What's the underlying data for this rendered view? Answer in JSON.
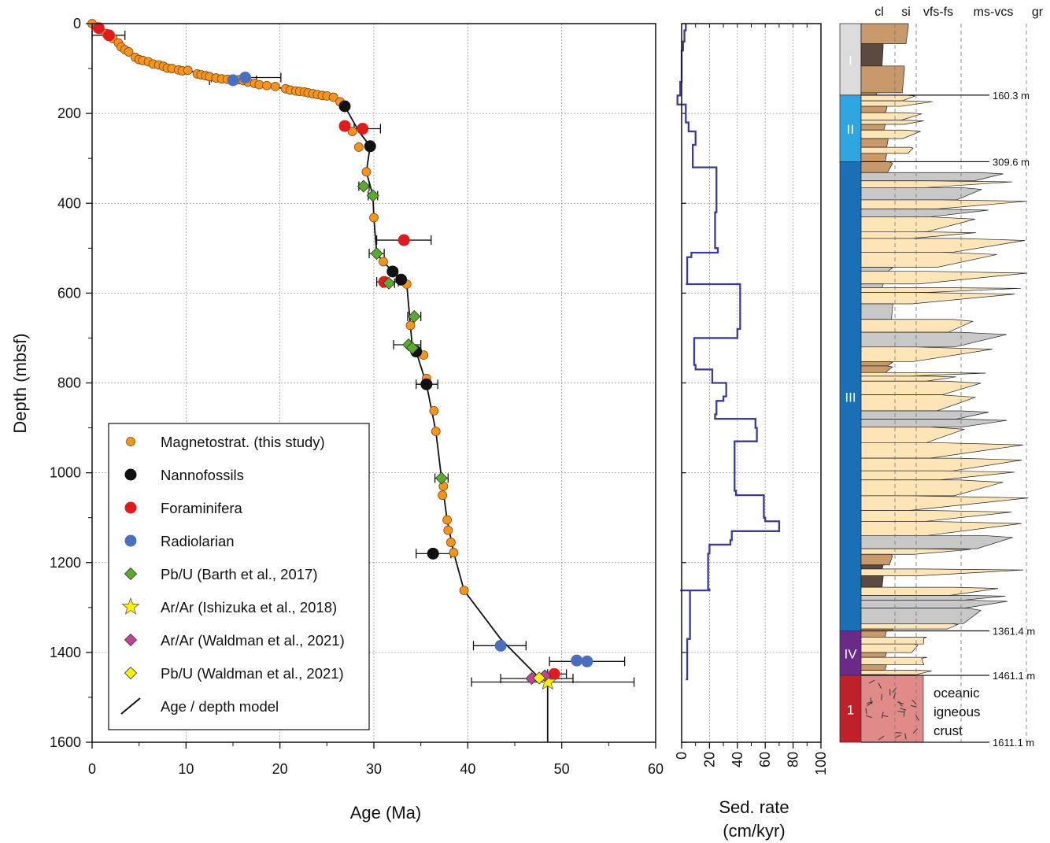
{
  "chart_data": [
    {
      "type": "scatter",
      "xlabel": "Age (Ma)",
      "ylabel": "Depth (mbsf)",
      "xlim": [
        0,
        60
      ],
      "ylim": [
        1600,
        0
      ],
      "xticks": [
        "0",
        "10",
        "20",
        "30",
        "40",
        "50",
        "60"
      ],
      "yticks": [
        "0",
        "200",
        "400",
        "600",
        "800",
        "1000",
        "1200",
        "1400",
        "1600"
      ],
      "grid": true,
      "legend_position": "bottom-left",
      "legend": [
        {
          "label": "Magnetostrat. (this study)",
          "marker": "circle-small",
          "color": "#f7941d"
        },
        {
          "label": "Nannofossils",
          "marker": "circle",
          "color": "#111111"
        },
        {
          "label": "Foraminifera",
          "marker": "circle",
          "color": "#e31a1c"
        },
        {
          "label": "Radiolarian",
          "marker": "circle",
          "color": "#4a6fbf"
        },
        {
          "label": "Pb/U (Barth et al., 2017)",
          "marker": "diamond",
          "color": "#5aab2b"
        },
        {
          "label": "Ar/Ar (Ishizuka et al., 2018)",
          "marker": "star",
          "color": "#fff200"
        },
        {
          "label": "Ar/Ar (Waldman et al., 2021)",
          "marker": "diamond",
          "color": "#c2439a"
        },
        {
          "label": "Pb/U (Waldman et al., 2021)",
          "marker": "diamond",
          "color": "#fff200"
        },
        {
          "label": "Age / depth model",
          "marker": "line",
          "color": "#111111"
        }
      ],
      "series": [
        {
          "name": "Magnetostrat. (this study)",
          "points": [
            [
              0,
              0
            ],
            [
              0.8,
              12
            ],
            [
              1.5,
              22
            ],
            [
              2.2,
              33
            ],
            [
              2.8,
              43
            ],
            [
              3.1,
              52
            ],
            [
              3.5,
              58
            ],
            [
              3.9,
              63
            ],
            [
              4.6,
              75
            ],
            [
              5.0,
              80
            ],
            [
              5.4,
              82
            ],
            [
              6.0,
              85
            ],
            [
              6.5,
              90
            ],
            [
              7.1,
              92
            ],
            [
              7.6,
              95
            ],
            [
              8.0,
              99
            ],
            [
              8.5,
              100
            ],
            [
              9.2,
              103
            ],
            [
              9.6,
              105
            ],
            [
              10.2,
              104
            ],
            [
              11.2,
              112
            ],
            [
              11.6,
              114
            ],
            [
              12.1,
              116
            ],
            [
              12.5,
              118
            ],
            [
              13.2,
              121
            ],
            [
              13.8,
              123
            ],
            [
              14.4,
              124
            ],
            [
              15.6,
              125
            ],
            [
              16.1,
              127
            ],
            [
              16.6,
              130
            ],
            [
              17.3,
              133
            ],
            [
              17.8,
              136
            ],
            [
              18.6,
              138
            ],
            [
              19.5,
              140
            ],
            [
              20.6,
              145
            ],
            [
              21.1,
              148
            ],
            [
              21.7,
              150
            ],
            [
              22.1,
              151
            ],
            [
              22.6,
              152
            ],
            [
              23.0,
              154
            ],
            [
              23.5,
              156
            ],
            [
              24.0,
              158
            ],
            [
              24.5,
              160
            ],
            [
              25.0,
              161
            ],
            [
              25.7,
              164
            ],
            [
              26.4,
              174
            ],
            [
              27.7,
              240
            ],
            [
              28.4,
              275
            ],
            [
              29.2,
              330
            ],
            [
              30.0,
              432
            ],
            [
              31.0,
              530
            ],
            [
              33.5,
              580
            ],
            [
              33.9,
              672
            ],
            [
              35.3,
              738
            ],
            [
              35.6,
              790
            ],
            [
              36.4,
              862
            ],
            [
              36.6,
              908
            ],
            [
              37.4,
              1030
            ],
            [
              37.3,
              1050
            ],
            [
              37.8,
              1105
            ],
            [
              37.9,
              1128
            ],
            [
              38.2,
              1155
            ],
            [
              38.5,
              1178
            ],
            [
              39.6,
              1262
            ]
          ]
        },
        {
          "name": "Nannofossils",
          "points": [
            [
              26.9,
              184
            ],
            [
              29.6,
              273
            ],
            [
              32.0,
              552
            ],
            [
              32.9,
              570
            ],
            [
              34.5,
              730
            ],
            [
              35.6,
              803
            ],
            [
              36.3,
              1180
            ]
          ],
          "xerr": [
            [
              34.5,
              1180,
              38.2
            ],
            [
              34.5,
              803,
              36.8
            ]
          ]
        },
        {
          "name": "Foraminifera",
          "points": [
            [
              0.7,
              10
            ],
            [
              1.8,
              26
            ],
            [
              26.9,
              228
            ],
            [
              28.8,
              234
            ],
            [
              33.2,
              482
            ],
            [
              31.1,
              575
            ],
            [
              49.2,
              1448
            ]
          ],
          "xerr": [
            [
              0,
              26,
              3.5
            ],
            [
              27.9,
              234,
              30.7
            ],
            [
              30.3,
              482,
              36.1
            ],
            [
              30.3,
              575,
              32.6
            ],
            [
              48.5,
              1448,
              50.5
            ]
          ]
        },
        {
          "name": "Radiolarian",
          "points": [
            [
              16.3,
              120
            ],
            [
              15.0,
              126
            ],
            [
              43.5,
              1385
            ],
            [
              51.6,
              1418
            ],
            [
              52.7,
              1420
            ]
          ],
          "xerr": [
            [
              12.5,
              126,
              17.5
            ],
            [
              12.7,
              120,
              20.1
            ],
            [
              40.6,
              1385,
              46.2
            ],
            [
              48.7,
              1420,
              56.7
            ]
          ]
        },
        {
          "name": "Pb/U (Barth et al., 2017)",
          "points": [
            [
              28.9,
              362
            ],
            [
              29.9,
              383
            ],
            [
              30.3,
              512
            ],
            [
              31.6,
              578
            ],
            [
              34.3,
              652
            ],
            [
              33.7,
              715
            ],
            [
              34.1,
              722
            ],
            [
              37.2,
              1012
            ]
          ],
          "xerr": [
            [
              28.4,
              362,
              29.5
            ],
            [
              29.4,
              383,
              30.4
            ],
            [
              29.5,
              512,
              31.1
            ],
            [
              30.9,
              578,
              32.2
            ],
            [
              33.6,
              652,
              35.0
            ],
            [
              32.1,
              715,
              35.0
            ],
            [
              36.5,
              1012,
              37.9
            ]
          ]
        },
        {
          "name": "Ar/Ar (Ishizuka et al., 2018)",
          "points": [
            [
              48.5,
              1466
            ]
          ],
          "xerr": [
            [
              40.4,
              1466,
              57.7
            ]
          ]
        },
        {
          "name": "Ar/Ar (Waldman et al., 2021)",
          "points": [
            [
              46.8,
              1458
            ],
            [
              48.2,
              1452
            ]
          ],
          "xerr": [
            [
              43.5,
              1458,
              51.2
            ]
          ]
        },
        {
          "name": "Pb/U (Waldman et al., 2021)",
          "points": [
            [
              47.6,
              1457
            ]
          ]
        },
        {
          "name": "Age / depth model",
          "line": [
            [
              0,
              0
            ],
            [
              0.8,
              12
            ],
            [
              1.8,
              26
            ],
            [
              2.8,
              43
            ],
            [
              3.9,
              63
            ],
            [
              4.6,
              75
            ],
            [
              6.0,
              85
            ],
            [
              8.0,
              99
            ],
            [
              10.2,
              104
            ],
            [
              12.5,
              118
            ],
            [
              15.6,
              125
            ],
            [
              17.8,
              136
            ],
            [
              20.6,
              145
            ],
            [
              23.0,
              154
            ],
            [
              25.0,
              161
            ],
            [
              26.4,
              174
            ],
            [
              26.9,
              184
            ],
            [
              28.4,
              240
            ],
            [
              29.6,
              273
            ],
            [
              29.2,
              330
            ],
            [
              29.9,
              383
            ],
            [
              30.0,
              432
            ],
            [
              30.3,
              512
            ],
            [
              31.0,
              530
            ],
            [
              32.0,
              552
            ],
            [
              32.9,
              570
            ],
            [
              33.5,
              580
            ],
            [
              34.1,
              722
            ],
            [
              34.5,
              730
            ],
            [
              35.6,
              803
            ],
            [
              36.6,
              908
            ],
            [
              37.2,
              1012
            ],
            [
              37.8,
              1105
            ],
            [
              38.5,
              1178
            ],
            [
              39.6,
              1262
            ],
            [
              43.5,
              1370
            ],
            [
              47.6,
              1457
            ],
            [
              48.5,
              1466
            ],
            [
              48.5,
              1600
            ]
          ]
        }
      ]
    },
    {
      "type": "line",
      "xlabel": "Sed. rate (cm/kyr)",
      "xlim": [
        0,
        100
      ],
      "ylim": [
        1600,
        0
      ],
      "xticks": [
        "0",
        "20",
        "40",
        "60",
        "80",
        "100"
      ],
      "color": "#3a3a99",
      "series": [
        {
          "name": "",
          "step": [
            [
              3,
              0
            ],
            [
              2,
              15
            ],
            [
              1,
              40
            ],
            [
              0,
              60
            ],
            [
              -1,
              130
            ],
            [
              -3,
              160
            ],
            [
              3,
              180
            ],
            [
              5,
              220
            ],
            [
              10,
              240
            ],
            [
              8,
              270
            ],
            [
              25,
              320
            ],
            [
              24,
              420
            ],
            [
              26,
              500
            ],
            [
              7,
              510
            ],
            [
              4,
              520
            ],
            [
              3,
              580
            ],
            [
              42,
              580
            ],
            [
              40,
              680
            ],
            [
              9,
              700
            ],
            [
              10,
              760
            ],
            [
              22,
              770
            ],
            [
              32,
              800
            ],
            [
              30,
              830
            ],
            [
              25,
              840
            ],
            [
              24,
              870
            ],
            [
              53,
              880
            ],
            [
              54,
              900
            ],
            [
              38,
              930
            ],
            [
              39,
              1040
            ],
            [
              59,
              1050
            ],
            [
              60,
              1100
            ],
            [
              70,
              1108
            ],
            [
              70,
              1117
            ],
            [
              36,
              1130
            ],
            [
              35,
              1150
            ],
            [
              20,
              1160
            ],
            [
              19,
              1180
            ],
            [
              20,
              1260
            ],
            [
              -1,
              1262
            ],
            [
              6,
              1262
            ],
            [
              6,
              1360
            ],
            [
              4,
              1370
            ],
            [
              3,
              1460
            ]
          ]
        }
      ]
    },
    {
      "type": "lithology-log",
      "grain_size_labels": [
        "cl",
        "si",
        "vfs-fs",
        "ms-vcs",
        "gr"
      ],
      "units": [
        {
          "label": "I",
          "top": 0,
          "base": 160.3,
          "color": "#dcdcdc"
        },
        {
          "label": "II",
          "top": 160.3,
          "base": 309.6,
          "color": "#2fa6e0"
        },
        {
          "label": "III",
          "top": 309.6,
          "base": 1361.4,
          "color": "#1a6fb5"
        },
        {
          "label": "IV",
          "top": 1361.4,
          "base": 1461.1,
          "color": "#6a2a8a"
        },
        {
          "label": "1",
          "top": 1461.1,
          "base": 1611.1,
          "color": "#c0202a"
        }
      ],
      "boundary_labels": [
        "160.3 m",
        "309.6 m",
        "1361.4 m",
        "1461.1 m",
        "1611.1 m"
      ],
      "crust_label": [
        "oceanic",
        "igneous",
        "crust"
      ],
      "colors": {
        "sand": "#fde5b8",
        "mud": "#c8996a",
        "dark_mud": "#5c4a40",
        "tuff": "#c8c8c8",
        "crust": "#e08a8a"
      }
    }
  ]
}
